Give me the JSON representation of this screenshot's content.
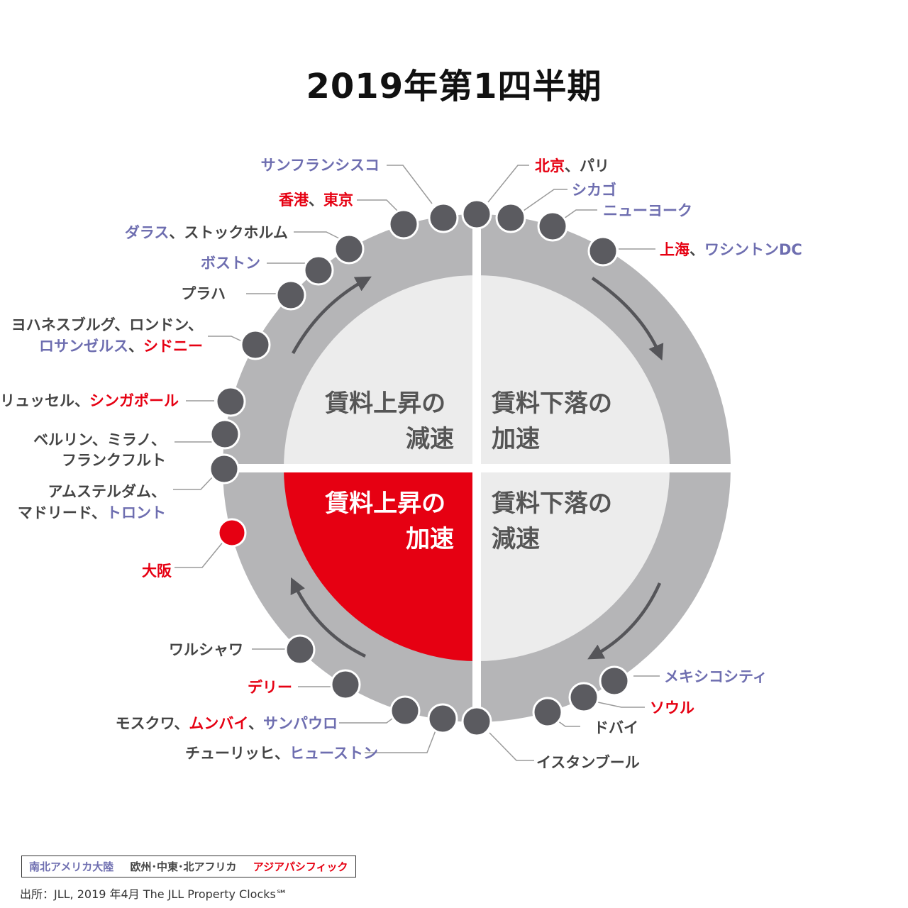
{
  "title": "2019年第1四半期",
  "colors": {
    "americas": "#6e6eb0",
    "emea": "#444444",
    "asia_pacific": "#e60012",
    "ring": "#b5b5b7",
    "quadrant_light": "#ececec",
    "quadrant_active": "#e60012",
    "node": "#5b5b60",
    "node_active": "#e60012",
    "quadrant_text": "#555555"
  },
  "quadrants": {
    "top_left": [
      "賃料上昇の",
      "減速"
    ],
    "top_right": [
      "賃料下落の",
      "加速"
    ],
    "bottom_left": [
      "賃料上昇の",
      "加速"
    ],
    "bottom_right": [
      "賃料下落の",
      "減速"
    ]
  },
  "cities": [
    {
      "parts": [
        {
          "text": "サンフランシスコ",
          "region": "americas"
        }
      ]
    },
    {
      "parts": [
        {
          "text": "香港",
          "region": "asia_pacific"
        },
        {
          "text": "、",
          "region": "emea"
        },
        {
          "text": "東京",
          "region": "asia_pacific"
        }
      ]
    },
    {
      "parts": [
        {
          "text": "ダラス",
          "region": "americas"
        },
        {
          "text": "、ストックホルム",
          "region": "emea"
        }
      ]
    },
    {
      "parts": [
        {
          "text": "ボストン",
          "region": "americas"
        }
      ]
    },
    {
      "parts": [
        {
          "text": "プラハ",
          "region": "emea"
        }
      ]
    },
    {
      "parts": [
        {
          "text": "ヨハネスブルグ、ロンドン、",
          "region": "emea"
        }
      ]
    },
    {
      "parts": [
        {
          "text": "ロサンゼルス",
          "region": "americas"
        },
        {
          "text": "、",
          "region": "emea"
        },
        {
          "text": "シドニー",
          "region": "asia_pacific"
        }
      ]
    },
    {
      "parts": [
        {
          "text": "ブリュッセル、",
          "region": "emea"
        },
        {
          "text": "シンガポール",
          "region": "asia_pacific"
        }
      ]
    },
    {
      "parts": [
        {
          "text": "ベルリン、ミラノ、",
          "region": "emea"
        }
      ]
    },
    {
      "parts": [
        {
          "text": "フランクフルト",
          "region": "emea"
        }
      ]
    },
    {
      "parts": [
        {
          "text": "アムステルダム、",
          "region": "emea"
        }
      ]
    },
    {
      "parts": [
        {
          "text": "マドリード、",
          "region": "emea"
        },
        {
          "text": "トロント",
          "region": "americas"
        }
      ]
    },
    {
      "parts": [
        {
          "text": "大阪",
          "region": "asia_pacific"
        }
      ],
      "highlight": true
    },
    {
      "parts": [
        {
          "text": "ワルシャワ",
          "region": "emea"
        }
      ]
    },
    {
      "parts": [
        {
          "text": "デリー",
          "region": "asia_pacific"
        }
      ]
    },
    {
      "parts": [
        {
          "text": "モスクワ、",
          "region": "emea"
        },
        {
          "text": "ムンバイ",
          "region": "asia_pacific"
        },
        {
          "text": "、",
          "region": "emea"
        },
        {
          "text": "サンパウロ",
          "region": "americas"
        }
      ]
    },
    {
      "parts": [
        {
          "text": "チューリッヒ、",
          "region": "emea"
        },
        {
          "text": "ヒューストン",
          "region": "americas"
        }
      ]
    },
    {
      "parts": [
        {
          "text": "北京",
          "region": "asia_pacific"
        },
        {
          "text": "、パリ",
          "region": "emea"
        }
      ]
    },
    {
      "parts": [
        {
          "text": "シカゴ",
          "region": "americas"
        }
      ]
    },
    {
      "parts": [
        {
          "text": "ニューヨーク",
          "region": "americas"
        }
      ]
    },
    {
      "parts": [
        {
          "text": "上海",
          "region": "asia_pacific"
        },
        {
          "text": "、",
          "region": "emea"
        },
        {
          "text": "ワシントンDC",
          "region": "americas"
        }
      ]
    },
    {
      "parts": [
        {
          "text": "メキシコシティ",
          "region": "americas"
        }
      ]
    },
    {
      "parts": [
        {
          "text": "ソウル",
          "region": "asia_pacific"
        }
      ]
    },
    {
      "parts": [
        {
          "text": "ドバイ",
          "region": "emea"
        }
      ]
    },
    {
      "parts": [
        {
          "text": "イスタンブール",
          "region": "emea"
        }
      ]
    }
  ],
  "legend": {
    "americas": "南北アメリカ大陸",
    "emea": "欧州･中東･北アフリカ",
    "asia_pacific": "アジアパシフィック"
  },
  "source": "出所：JLL, 2019 年4月  The JLL Property Clocks℠"
}
